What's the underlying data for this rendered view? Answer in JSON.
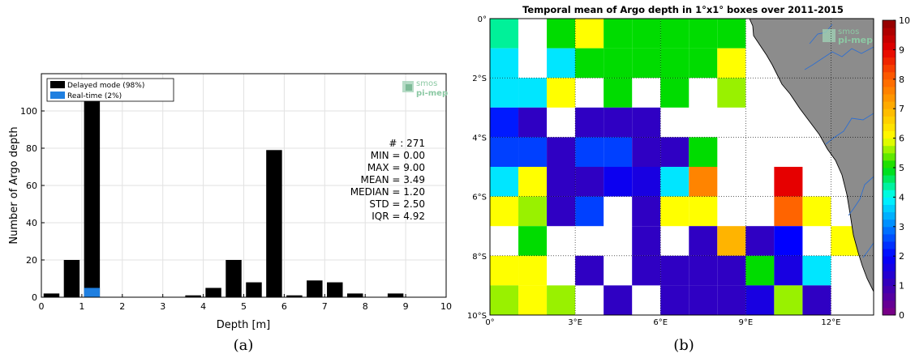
{
  "captions": {
    "a": "(a)",
    "b": "(b)"
  },
  "logo": {
    "line1": "smos",
    "line2": "pi-mep"
  },
  "chart_data": [
    {
      "type": "bar",
      "xlabel": "Depth [m]",
      "ylabel": "Number of Argo depth",
      "xlim": [
        0,
        10
      ],
      "ylim": [
        0,
        120
      ],
      "x_ticks": [
        0,
        1,
        2,
        3,
        4,
        5,
        6,
        7,
        8,
        9,
        10
      ],
      "y_ticks": [
        0,
        20,
        40,
        60,
        80,
        100
      ],
      "grid": true,
      "legend_position": "top-left",
      "series": [
        {
          "name": "Delayed mode (98%)",
          "color": "#000000",
          "bin_centers": [
            0.25,
            0.75,
            1.25,
            1.75,
            2.25,
            2.75,
            3.25,
            3.75,
            4.25,
            4.75,
            5.25,
            5.75,
            6.25,
            6.75,
            7.25,
            7.75,
            8.25,
            8.75,
            9.25,
            9.75
          ],
          "values": [
            2,
            20,
            108,
            0,
            0,
            0,
            0,
            1,
            5,
            20,
            8,
            79,
            1,
            9,
            8,
            2,
            0,
            2,
            0,
            0
          ]
        },
        {
          "name": "Real-time (2%)",
          "color": "#1f7fe0",
          "bin_centers": [
            1.25
          ],
          "values": [
            5
          ]
        }
      ],
      "stats": [
        {
          "label": "# : 271"
        },
        {
          "label": "MIN = 0.00"
        },
        {
          "label": "MAX =  9.00"
        },
        {
          "label": "MEAN = 3.49"
        },
        {
          "label": "MEDIAN = 1.20"
        },
        {
          "label": "STD = 2.50"
        },
        {
          "label": "IQR = 4.92"
        }
      ]
    },
    {
      "type": "heatmap",
      "title": "Temporal mean of Argo depth in 1°x1° boxes over 2011-2015",
      "lon_ticks": [
        "0°",
        "3°E",
        "6°E",
        "9°E",
        "12°E"
      ],
      "lat_ticks": [
        "0°",
        "2°S",
        "4°S",
        "6°S",
        "8°S",
        "10°S"
      ],
      "lon_range": [
        0,
        13.5
      ],
      "lat_range": [
        0,
        -10
      ],
      "colorbar": {
        "min": 0,
        "max": 10,
        "ticks": [
          "0",
          "1",
          "2",
          "3",
          "4",
          "5",
          "6",
          "7",
          "8",
          "9",
          "10"
        ]
      },
      "land_color": "#8c8c8c",
      "grid_values": [
        [
          4.4,
          null,
          5.0,
          6.0,
          5.0,
          5.0,
          5.0,
          5.0,
          5.0,
          null,
          null,
          null,
          null
        ],
        [
          3.8,
          null,
          3.8,
          5.0,
          5.0,
          5.0,
          5.0,
          5.0,
          6.0,
          null,
          null,
          null,
          null
        ],
        [
          3.8,
          3.8,
          6.0,
          null,
          5.0,
          null,
          5.0,
          null,
          5.6,
          null,
          null,
          null,
          null
        ],
        [
          2.2,
          1.2,
          null,
          1.2,
          1.2,
          1.2,
          null,
          null,
          null,
          null,
          null,
          null,
          null
        ],
        [
          2.5,
          2.5,
          1.2,
          2.5,
          2.5,
          1.2,
          1.2,
          5.0,
          null,
          null,
          null,
          null,
          null
        ],
        [
          3.8,
          6.0,
          1.2,
          1.2,
          1.8,
          1.6,
          3.8,
          7.6,
          null,
          null,
          9.0,
          null,
          null
        ],
        [
          6.0,
          5.6,
          1.2,
          2.5,
          null,
          1.2,
          6.0,
          6.0,
          null,
          null,
          8.0,
          6.0,
          null
        ],
        [
          null,
          5.0,
          null,
          null,
          null,
          1.2,
          null,
          1.2,
          7.0,
          1.2,
          2.0,
          null,
          6.0
        ],
        [
          6.0,
          6.0,
          null,
          1.2,
          null,
          1.2,
          1.2,
          1.2,
          1.2,
          5.0,
          1.6,
          3.8,
          null
        ],
        [
          5.6,
          6.0,
          5.6,
          null,
          1.2,
          null,
          1.2,
          1.2,
          1.2,
          1.6,
          5.6,
          1.2,
          null
        ]
      ]
    }
  ]
}
